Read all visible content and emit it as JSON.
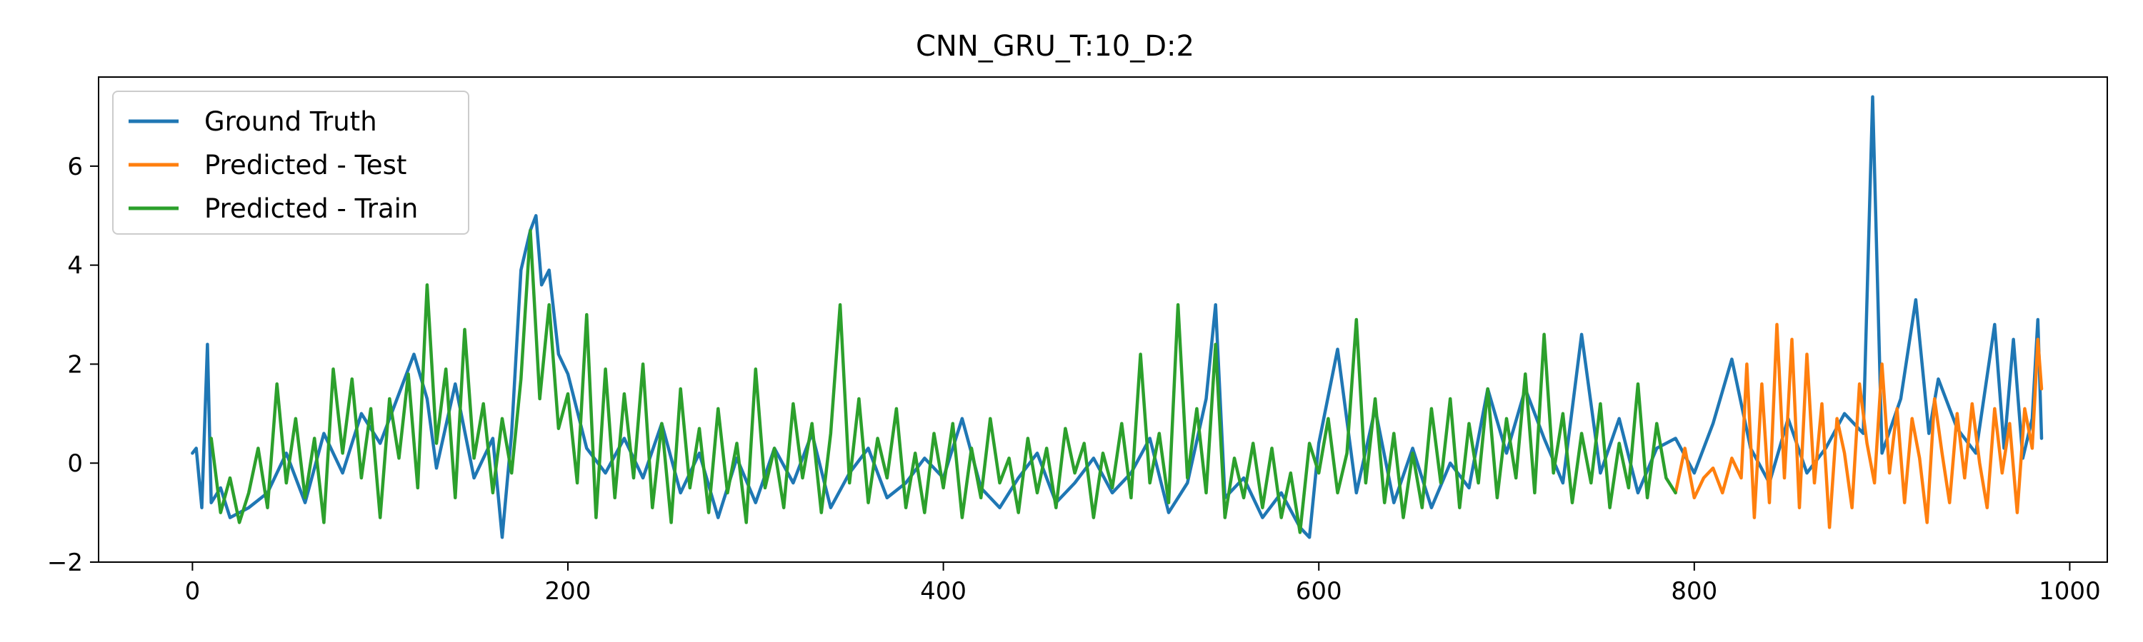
{
  "chart_data": {
    "type": "line",
    "title": "CNN_GRU_T:10_D:2",
    "xlabel": "",
    "ylabel": "",
    "xlim": [
      -50,
      1020
    ],
    "ylim": [
      -2,
      7.8
    ],
    "xticks": [
      0,
      200,
      400,
      600,
      800,
      1000
    ],
    "yticks": [
      -2,
      0,
      2,
      4,
      6
    ],
    "grid": false,
    "legend_position": "top-left",
    "series": [
      {
        "name": "Ground Truth",
        "color": "#1f77b4",
        "x": [
          0,
          2,
          5,
          8,
          10,
          15,
          20,
          30,
          40,
          50,
          60,
          70,
          80,
          90,
          100,
          110,
          118,
          125,
          130,
          140,
          150,
          160,
          165,
          170,
          175,
          180,
          183,
          186,
          190,
          195,
          200,
          210,
          220,
          230,
          240,
          250,
          260,
          270,
          280,
          290,
          300,
          310,
          320,
          330,
          340,
          350,
          360,
          370,
          380,
          390,
          400,
          410,
          420,
          430,
          440,
          450,
          460,
          470,
          480,
          490,
          500,
          510,
          520,
          530,
          540,
          545,
          550,
          560,
          570,
          580,
          590,
          595,
          600,
          610,
          620,
          630,
          640,
          650,
          660,
          670,
          680,
          690,
          700,
          710,
          720,
          730,
          740,
          750,
          760,
          770,
          780,
          790,
          800,
          810,
          820,
          830,
          840,
          850,
          860,
          870,
          880,
          890,
          895,
          900,
          910,
          918,
          925,
          930,
          940,
          950,
          960,
          965,
          970,
          975,
          980,
          983,
          985
        ],
        "y": [
          0.2,
          0.3,
          -0.9,
          2.4,
          -0.8,
          -0.5,
          -1.1,
          -0.9,
          -0.6,
          0.2,
          -0.8,
          0.6,
          -0.2,
          1.0,
          0.4,
          1.4,
          2.2,
          1.3,
          -0.1,
          1.6,
          -0.3,
          0.5,
          -1.5,
          0.6,
          3.9,
          4.7,
          5.0,
          3.6,
          3.9,
          2.2,
          1.8,
          0.3,
          -0.2,
          0.5,
          -0.3,
          0.8,
          -0.6,
          0.2,
          -1.1,
          0.1,
          -0.8,
          0.3,
          -0.4,
          0.6,
          -0.9,
          -0.2,
          0.3,
          -0.7,
          -0.4,
          0.1,
          -0.3,
          0.9,
          -0.5,
          -0.9,
          -0.3,
          0.2,
          -0.8,
          -0.4,
          0.1,
          -0.6,
          -0.2,
          0.5,
          -1.0,
          -0.4,
          1.3,
          3.2,
          -0.7,
          -0.3,
          -1.1,
          -0.6,
          -1.3,
          -1.5,
          0.4,
          2.3,
          -0.6,
          1.1,
          -0.8,
          0.3,
          -0.9,
          0.0,
          -0.5,
          1.5,
          0.2,
          1.5,
          0.5,
          -0.4,
          2.6,
          -0.2,
          0.9,
          -0.6,
          0.3,
          0.5,
          -0.2,
          0.8,
          2.1,
          0.3,
          -0.4,
          0.9,
          -0.2,
          0.3,
          1.0,
          0.6,
          7.4,
          0.2,
          1.3,
          3.3,
          0.6,
          1.7,
          0.7,
          0.2,
          2.8,
          0.3,
          2.5,
          0.1,
          0.9,
          2.9,
          0.5
        ]
      },
      {
        "name": "Predicted - Test",
        "color": "#ff7f0e",
        "x": [
          790,
          795,
          800,
          805,
          810,
          815,
          820,
          825,
          828,
          832,
          836,
          840,
          844,
          848,
          852,
          856,
          860,
          864,
          868,
          872,
          876,
          880,
          884,
          888,
          892,
          896,
          900,
          904,
          908,
          912,
          916,
          920,
          924,
          928,
          932,
          936,
          940,
          944,
          948,
          952,
          956,
          960,
          964,
          968,
          972,
          976,
          980,
          983,
          985
        ],
        "y": [
          -0.6,
          0.3,
          -0.7,
          -0.3,
          -0.1,
          -0.6,
          0.1,
          -0.3,
          2.0,
          -1.1,
          1.6,
          -0.8,
          2.8,
          -0.3,
          2.5,
          -0.9,
          2.2,
          -0.4,
          1.2,
          -1.3,
          0.9,
          0.2,
          -0.9,
          1.6,
          0.4,
          -0.4,
          2.0,
          -0.2,
          1.1,
          -0.8,
          0.9,
          0.1,
          -1.2,
          1.3,
          0.2,
          -0.8,
          1.0,
          -0.3,
          1.2,
          0.0,
          -0.9,
          1.1,
          -0.2,
          0.8,
          -1.0,
          1.1,
          0.3,
          2.5,
          1.5
        ]
      },
      {
        "name": "Predicted - Train",
        "color": "#2ca02c",
        "x": [
          10,
          15,
          20,
          25,
          30,
          35,
          40,
          45,
          50,
          55,
          60,
          65,
          70,
          75,
          80,
          85,
          90,
          95,
          100,
          105,
          110,
          115,
          120,
          125,
          130,
          135,
          140,
          145,
          150,
          155,
          160,
          165,
          170,
          175,
          180,
          185,
          190,
          195,
          200,
          205,
          210,
          215,
          220,
          225,
          230,
          235,
          240,
          245,
          250,
          255,
          260,
          265,
          270,
          275,
          280,
          285,
          290,
          295,
          300,
          305,
          310,
          315,
          320,
          325,
          330,
          335,
          340,
          345,
          350,
          355,
          360,
          365,
          370,
          375,
          380,
          385,
          390,
          395,
          400,
          405,
          410,
          415,
          420,
          425,
          430,
          435,
          440,
          445,
          450,
          455,
          460,
          465,
          470,
          475,
          480,
          485,
          490,
          495,
          500,
          505,
          510,
          515,
          520,
          525,
          530,
          535,
          540,
          545,
          550,
          555,
          560,
          565,
          570,
          575,
          580,
          585,
          590,
          595,
          600,
          605,
          610,
          615,
          620,
          625,
          630,
          635,
          640,
          645,
          650,
          655,
          660,
          665,
          670,
          675,
          680,
          685,
          690,
          695,
          700,
          705,
          710,
          715,
          720,
          725,
          730,
          735,
          740,
          745,
          750,
          755,
          760,
          765,
          770,
          775,
          780,
          785,
          790
        ],
        "y": [
          0.5,
          -1.0,
          -0.3,
          -1.2,
          -0.6,
          0.3,
          -0.9,
          1.6,
          -0.4,
          0.9,
          -0.7,
          0.5,
          -1.2,
          1.9,
          0.2,
          1.7,
          -0.3,
          1.1,
          -1.1,
          1.3,
          0.1,
          1.8,
          -0.5,
          3.6,
          0.4,
          1.9,
          -0.7,
          2.7,
          0.1,
          1.2,
          -0.6,
          0.9,
          -0.2,
          1.7,
          4.7,
          1.3,
          3.2,
          0.7,
          1.4,
          -0.4,
          3.0,
          -1.1,
          1.9,
          -0.7,
          1.4,
          -0.3,
          2.0,
          -0.9,
          0.8,
          -1.2,
          1.5,
          -0.5,
          0.7,
          -1.0,
          1.1,
          -0.6,
          0.4,
          -1.2,
          1.9,
          -0.5,
          0.3,
          -0.9,
          1.2,
          -0.3,
          0.8,
          -1.0,
          0.6,
          3.2,
          -0.4,
          1.3,
          -0.8,
          0.5,
          -0.3,
          1.1,
          -0.9,
          0.2,
          -1.0,
          0.6,
          -0.5,
          0.8,
          -1.1,
          0.3,
          -0.7,
          0.9,
          -0.4,
          0.1,
          -1.0,
          0.5,
          -0.6,
          0.3,
          -0.9,
          0.7,
          -0.2,
          0.4,
          -1.1,
          0.2,
          -0.5,
          0.8,
          -0.7,
          2.2,
          -0.4,
          0.6,
          -0.8,
          3.2,
          -0.3,
          1.1,
          -0.6,
          2.4,
          -1.1,
          0.1,
          -0.7,
          0.4,
          -0.9,
          0.3,
          -1.1,
          -0.2,
          -1.4,
          0.4,
          -0.2,
          0.9,
          -0.6,
          0.2,
          2.9,
          -0.4,
          1.3,
          -0.8,
          0.6,
          -1.1,
          0.2,
          -0.9,
          1.1,
          -0.4,
          1.3,
          -0.9,
          0.8,
          -0.4,
          1.5,
          -0.7,
          0.9,
          -0.3,
          1.8,
          -0.6,
          2.6,
          -0.2,
          1.0,
          -0.8,
          0.6,
          -0.4,
          1.2,
          -0.9,
          0.4,
          -0.5,
          1.6,
          -0.7,
          0.8,
          -0.3,
          -0.6
        ]
      }
    ]
  }
}
